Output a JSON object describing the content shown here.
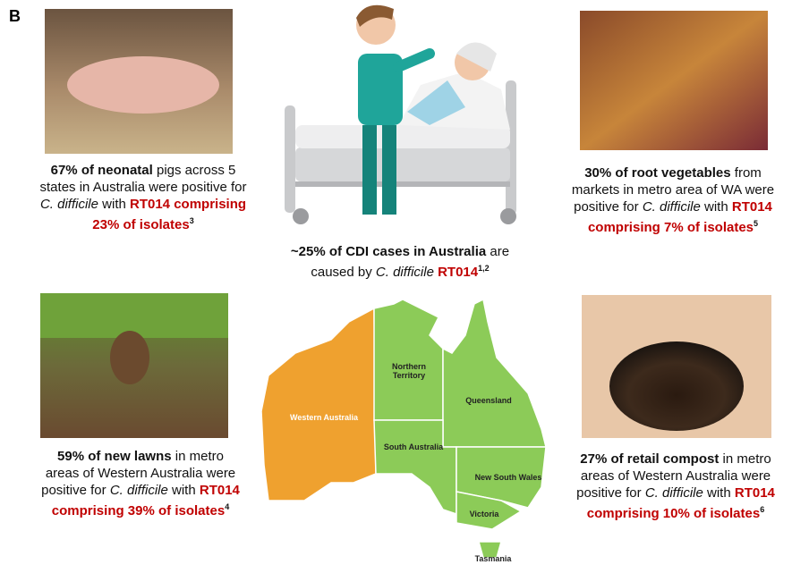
{
  "label": "B",
  "panels": [
    {
      "lines": [
        [
          {
            "text": "67% of neonatal",
            "style": "bold"
          },
          {
            "text": " pigs across 5",
            "style": "plain"
          }
        ],
        [
          {
            "text": "states in Australia were positive for",
            "style": "plain"
          }
        ],
        [
          {
            "text": "C. difficile",
            "style": "italic"
          },
          {
            "text": " with ",
            "style": "plain"
          },
          {
            "text": "RT014 comprising",
            "style": "red"
          }
        ],
        [
          {
            "text": "23% of isolates",
            "style": "red"
          },
          {
            "text": "3",
            "style": "sup"
          }
        ]
      ]
    },
    {
      "lines": [
        [
          {
            "text": "~25% of CDI cases in Australia",
            "style": "bold"
          },
          {
            "text": " are",
            "style": "plain"
          }
        ],
        [
          {
            "text": "caused by ",
            "style": "plain"
          },
          {
            "text": "C. difficile ",
            "style": "italic"
          },
          {
            "text": "RT014",
            "style": "red"
          },
          {
            "text": "1,2",
            "style": "sup"
          }
        ]
      ]
    },
    {
      "lines": [
        [
          {
            "text": "30% of root vegetables",
            "style": "bold"
          },
          {
            "text": " from",
            "style": "plain"
          }
        ],
        [
          {
            "text": "markets in metro area of WA were",
            "style": "plain"
          }
        ],
        [
          {
            "text": "positive for ",
            "style": "plain"
          },
          {
            "text": "C. difficile",
            "style": "italic"
          },
          {
            "text": " with ",
            "style": "plain"
          },
          {
            "text": "RT014",
            "style": "red"
          }
        ],
        [
          {
            "text": "comprising 7% of isolates",
            "style": "red"
          },
          {
            "text": "5",
            "style": "sup"
          }
        ]
      ]
    },
    {
      "lines": [
        [
          {
            "text": "59% of new lawns",
            "style": "bold"
          },
          {
            "text": " in metro",
            "style": "plain"
          }
        ],
        [
          {
            "text": "areas of Western Australia were",
            "style": "plain"
          }
        ],
        [
          {
            "text": "positive for ",
            "style": "plain"
          },
          {
            "text": "C. difficile",
            "style": "italic"
          },
          {
            "text": " with ",
            "style": "plain"
          },
          {
            "text": "RT014",
            "style": "red"
          }
        ],
        [
          {
            "text": "comprising 39% of isolates",
            "style": "red"
          },
          {
            "text": "4",
            "style": "sup"
          }
        ]
      ]
    },
    {
      "lines": [
        [
          {
            "text": "27% of retail compost",
            "style": "bold"
          },
          {
            "text": " in metro",
            "style": "plain"
          }
        ],
        [
          {
            "text": "areas of Western Australia were",
            "style": "plain"
          }
        ],
        [
          {
            "text": "positive for ",
            "style": "plain"
          },
          {
            "text": "C. difficile",
            "style": "italic"
          },
          {
            "text": " with ",
            "style": "plain"
          },
          {
            "text": "RT014",
            "style": "red"
          }
        ],
        [
          {
            "text": "comprising 10% of isolates",
            "style": "red"
          },
          {
            "text": "6",
            "style": "sup"
          }
        ]
      ]
    }
  ],
  "map": {
    "states": [
      [
        "Western Australia"
      ],
      [
        "Northern",
        "Territory"
      ],
      [
        "Queensland"
      ],
      [
        "South Australia"
      ],
      [
        "New South Wales"
      ],
      [
        "Victoria"
      ],
      [
        "Tasmania"
      ]
    ]
  }
}
